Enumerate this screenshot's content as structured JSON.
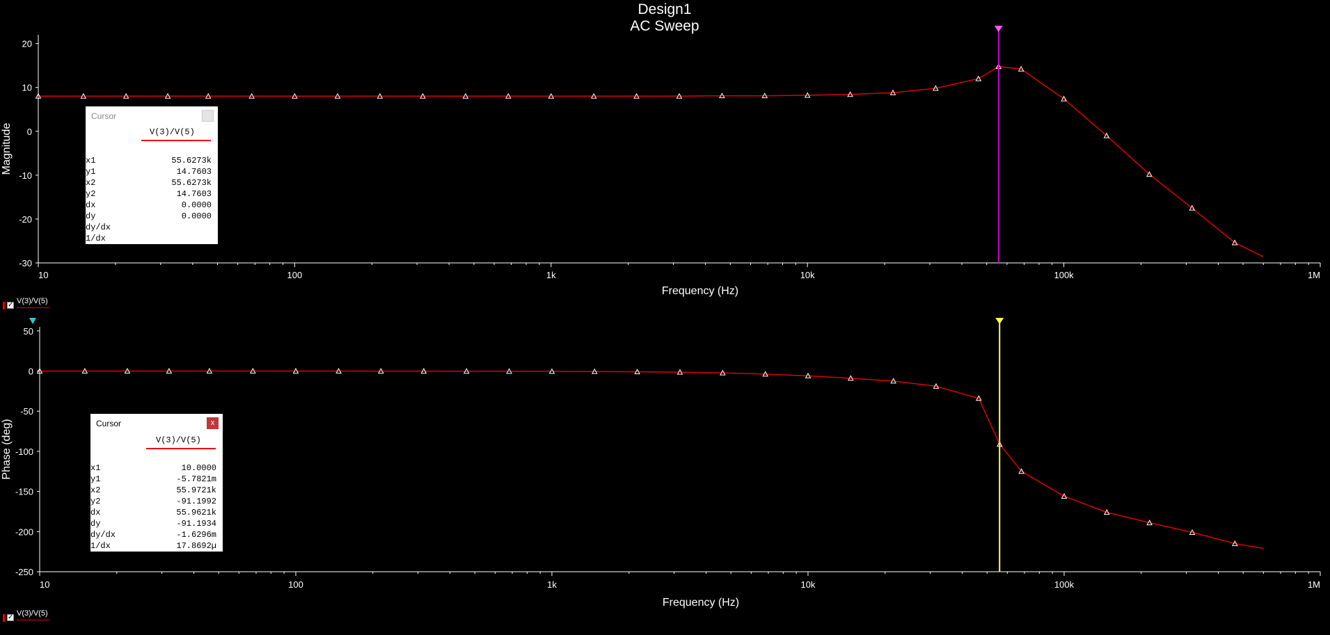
{
  "chart_data": [
    {
      "type": "line",
      "title": "Design1",
      "subtitle": "AC Sweep",
      "xlabel": "Frequency (Hz)",
      "ylabel": "Magnitude",
      "xscale": "log",
      "xlim": [
        10,
        1000000
      ],
      "ylim": [
        -30,
        22
      ],
      "x_ticks": [
        "10",
        "100",
        "1k",
        "10k",
        "100k",
        "1M"
      ],
      "y_ticks": [
        "20",
        "10",
        "0",
        "-10",
        "-20",
        "-30"
      ],
      "series": [
        {
          "name": "V(3)/V(5)",
          "color": "#e00000",
          "x": [
            10,
            15,
            22,
            32,
            46,
            68,
            100,
            147,
            215,
            316,
            464,
            681,
            1000,
            1468,
            2154,
            3162,
            4642,
            6813,
            10000,
            14678,
            21544,
            31623,
            46416,
            55627,
            68129,
            100000,
            146780,
            215440,
            316230,
            464160,
            600000
          ],
          "y": [
            8.0,
            8.0,
            8.0,
            8.0,
            8.0,
            8.0,
            8.0,
            8.0,
            8.0,
            8.0,
            8.0,
            8.0,
            8.0,
            8.0,
            8.0,
            8.0,
            8.1,
            8.1,
            8.2,
            8.4,
            8.8,
            9.8,
            12.0,
            14.76,
            14.2,
            7.4,
            -1.0,
            -9.8,
            -17.5,
            -25.4,
            -28.6
          ],
          "markers": true
        }
      ],
      "cursor": {
        "x": 55627.3,
        "color": "#cc00cc",
        "title": "Cursor",
        "series_label": "V(3)/V(5)",
        "rows": [
          {
            "k": "x1",
            "v": "55.6273k"
          },
          {
            "k": "y1",
            "v": "14.7603"
          },
          {
            "k": "x2",
            "v": "55.6273k"
          },
          {
            "k": "y2",
            "v": "14.7603"
          },
          {
            "k": "dx",
            "v": "0.0000"
          },
          {
            "k": "dy",
            "v": "0.0000"
          },
          {
            "k": "dy/dx",
            "v": ""
          },
          {
            "k": "1/dx",
            "v": ""
          }
        ]
      },
      "legend_label": "V(3)/V(5)"
    },
    {
      "type": "line",
      "xlabel": "Frequency (Hz)",
      "ylabel": "Phase (deg)",
      "xscale": "log",
      "xlim": [
        10,
        1000000
      ],
      "ylim": [
        -250,
        55
      ],
      "x_ticks": [
        "10",
        "100",
        "1k",
        "10k",
        "100k",
        "1M"
      ],
      "y_ticks": [
        "50",
        "0",
        "-50",
        "-100",
        "-150",
        "-200",
        "-250"
      ],
      "series": [
        {
          "name": "V(3)/V(5)",
          "color": "#e00000",
          "x": [
            10,
            15,
            22,
            32,
            46,
            68,
            100,
            147,
            215,
            316,
            464,
            681,
            1000,
            1468,
            2154,
            3162,
            4642,
            6813,
            10000,
            14678,
            21544,
            31623,
            46416,
            55972,
            68129,
            100000,
            146780,
            215440,
            316230,
            464160,
            600000
          ],
          "y": [
            0,
            0,
            0,
            0,
            0,
            0,
            0,
            0,
            -0.1,
            -0.1,
            -0.2,
            -0.3,
            -0.4,
            -0.6,
            -0.9,
            -1.4,
            -2.3,
            -3.8,
            -6.0,
            -9.0,
            -12.5,
            -19.0,
            -34.0,
            -91.2,
            -125.0,
            -156.0,
            -176.0,
            -189.0,
            -201.0,
            -215.0,
            -221.0
          ],
          "markers": true
        }
      ],
      "cursor": {
        "x": 55972.1,
        "color": "#ffff66",
        "title": "Cursor",
        "close": "x",
        "series_label": "V(3)/V(5)",
        "rows": [
          {
            "k": "x1",
            "v": "10.0000"
          },
          {
            "k": "y1",
            "v": "-5.7821m"
          },
          {
            "k": "x2",
            "v": "55.9721k"
          },
          {
            "k": "y2",
            "v": "-91.1992"
          },
          {
            "k": "dx",
            "v": "55.9621k"
          },
          {
            "k": "dy",
            "v": "-91.1934"
          },
          {
            "k": "dy/dx",
            "v": "-1.6296m"
          },
          {
            "k": "1/dx",
            "v": "17.8692µ"
          }
        ]
      },
      "legend_label": "V(3)/V(5)"
    }
  ]
}
